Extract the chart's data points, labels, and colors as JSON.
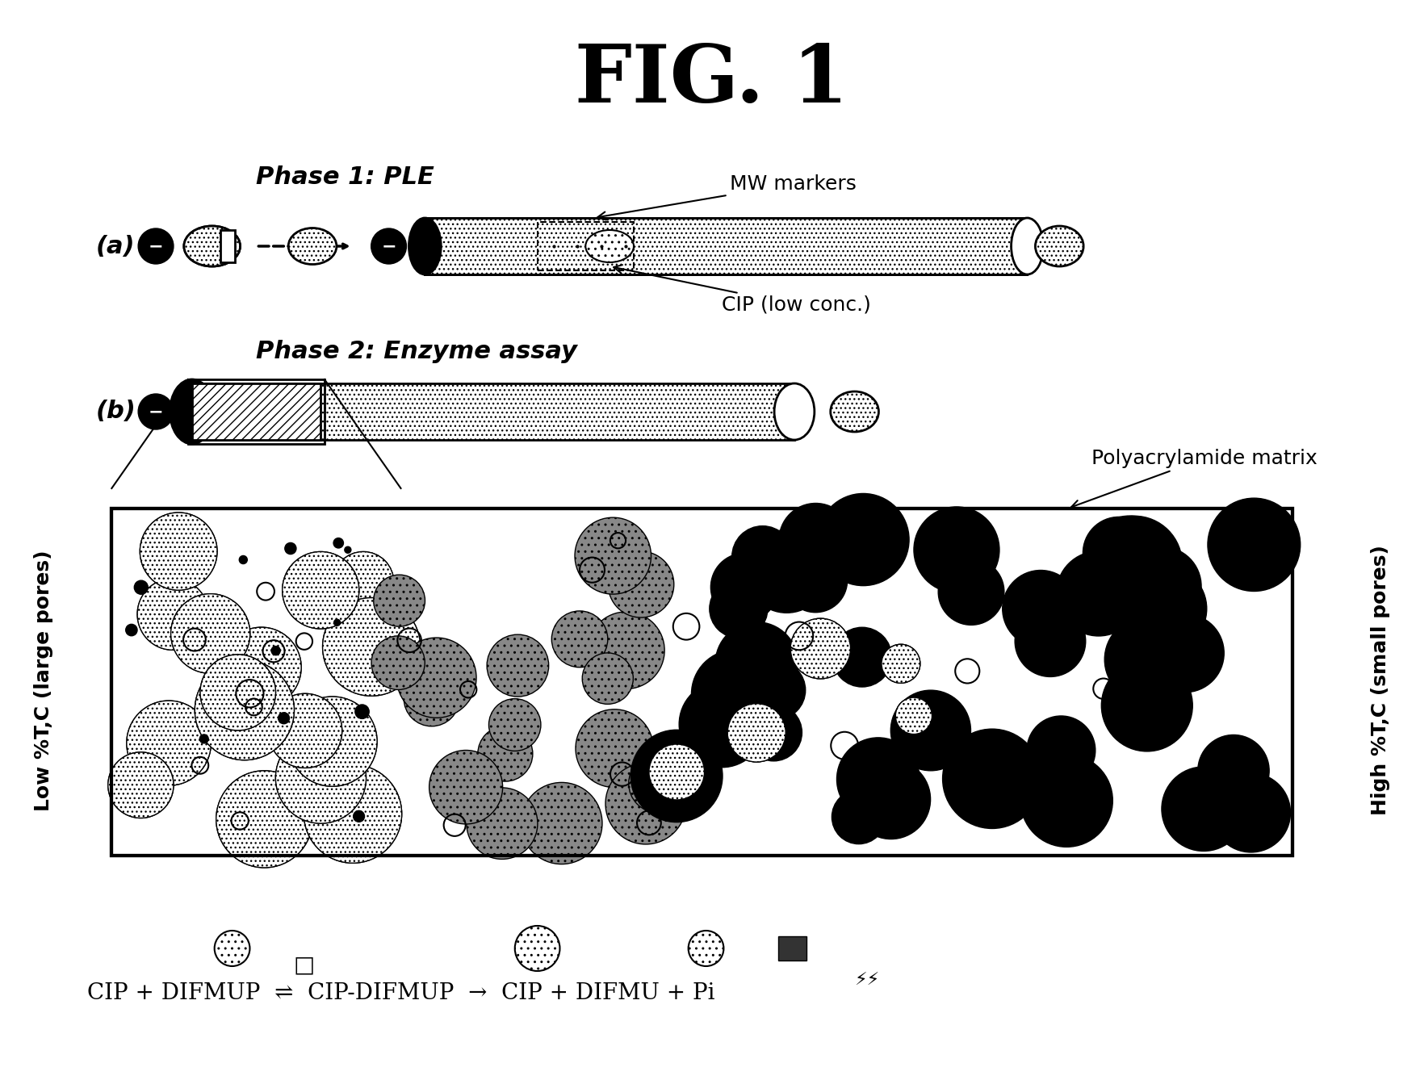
{
  "title": "FIG. 1",
  "title_fontsize": 72,
  "bg_color": "#ffffff",
  "panel_a_label": "(a)",
  "panel_b_label": "(b)",
  "phase1_label": "Phase 1: PLE",
  "phase2_label": "Phase 2: Enzyme assay",
  "mw_markers_label": "MW markers",
  "cip_label": "CIP (low conc.)",
  "polyacryl_label": "Polyacrylamide matrix",
  "left_axis_label": "Low %T,C (large pores)",
  "right_axis_label": "High %T,C (small pores)",
  "reaction_eq": "CIP + DIFMUP  ⇌  CIP-DIFMUP  →  CIP + DIFMU + Pi"
}
